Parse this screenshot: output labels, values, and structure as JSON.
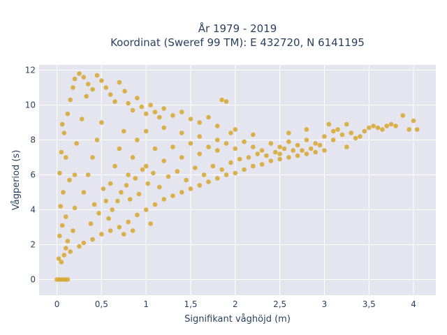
{
  "chart_data": {
    "type": "scatter",
    "title": "År 1979 - 2019",
    "subtitle": "Koordinat (Sweref 99 TM): E 432720, N 6141195",
    "xlabel": "Signifikant våghöjd (m)",
    "ylabel": "Vågperiod (s)",
    "xlim": [
      -0.2,
      4.25
    ],
    "ylim": [
      -0.9,
      12.3
    ],
    "x_ticks": [
      0,
      0.5,
      1,
      1.5,
      2,
      2.5,
      3,
      3.5,
      4
    ],
    "x_tick_labels": [
      "0",
      "0,5",
      "1",
      "1,5",
      "2",
      "2,5",
      "3",
      "3,5",
      "4"
    ],
    "y_ticks": [
      0,
      2,
      4,
      6,
      8,
      10,
      12
    ],
    "y_tick_labels": [
      "0",
      "2",
      "4",
      "6",
      "8",
      "10",
      "12"
    ],
    "grid": true,
    "marker_color": "#d4a11e",
    "plot_background": "#e5e5ef",
    "points": [
      [
        0.0,
        0.0
      ],
      [
        0.03,
        0.0
      ],
      [
        0.06,
        0.0
      ],
      [
        0.09,
        0.0
      ],
      [
        0.12,
        0.0
      ],
      [
        0.02,
        1.2
      ],
      [
        0.05,
        1.0
      ],
      [
        0.08,
        1.4
      ],
      [
        0.1,
        1.8
      ],
      [
        0.03,
        2.5
      ],
      [
        0.06,
        3.1
      ],
      [
        0.04,
        4.2
      ],
      [
        0.07,
        5.0
      ],
      [
        0.03,
        6.1
      ],
      [
        0.05,
        7.3
      ],
      [
        0.08,
        8.4
      ],
      [
        0.06,
        8.9
      ],
      [
        0.1,
        3.6
      ],
      [
        0.12,
        2.2
      ],
      [
        0.15,
        1.6
      ],
      [
        0.18,
        2.8
      ],
      [
        0.2,
        4.1
      ],
      [
        0.14,
        5.7
      ],
      [
        0.1,
        7.0
      ],
      [
        0.12,
        9.5
      ],
      [
        0.15,
        10.3
      ],
      [
        0.18,
        11.0
      ],
      [
        0.2,
        11.5
      ],
      [
        0.25,
        11.8
      ],
      [
        0.3,
        11.6
      ],
      [
        0.35,
        11.2
      ],
      [
        0.4,
        10.9
      ],
      [
        0.45,
        11.7
      ],
      [
        0.5,
        11.4
      ],
      [
        0.55,
        11.0
      ],
      [
        0.6,
        10.6
      ],
      [
        0.65,
        10.2
      ],
      [
        0.7,
        11.3
      ],
      [
        0.76,
        10.8
      ],
      [
        0.8,
        10.1
      ],
      [
        0.85,
        9.7
      ],
      [
        0.9,
        10.4
      ],
      [
        0.95,
        9.9
      ],
      [
        1.0,
        9.5
      ],
      [
        1.05,
        10.0
      ],
      [
        1.1,
        9.6
      ],
      [
        1.15,
        9.3
      ],
      [
        1.2,
        9.8
      ],
      [
        1.3,
        9.4
      ],
      [
        1.4,
        9.6
      ],
      [
        1.5,
        9.2
      ],
      [
        1.6,
        9.0
      ],
      [
        1.7,
        9.3
      ],
      [
        1.8,
        8.8
      ],
      [
        1.85,
        10.3
      ],
      [
        1.9,
        10.2
      ],
      [
        2.0,
        8.6
      ],
      [
        1.95,
        8.4
      ],
      [
        0.25,
        1.9
      ],
      [
        0.3,
        2.1
      ],
      [
        0.4,
        2.3
      ],
      [
        0.5,
        2.6
      ],
      [
        0.6,
        2.8
      ],
      [
        0.7,
        3.0
      ],
      [
        0.8,
        3.3
      ],
      [
        0.9,
        3.7
      ],
      [
        1.0,
        4.0
      ],
      [
        1.1,
        4.3
      ],
      [
        1.2,
        4.6
      ],
      [
        1.3,
        4.8
      ],
      [
        1.4,
        5.0
      ],
      [
        1.5,
        5.2
      ],
      [
        1.6,
        5.4
      ],
      [
        1.7,
        5.6
      ],
      [
        1.8,
        5.8
      ],
      [
        1.9,
        6.0
      ],
      [
        2.0,
        6.1
      ],
      [
        2.1,
        6.3
      ],
      [
        2.2,
        6.5
      ],
      [
        2.3,
        6.6
      ],
      [
        2.4,
        6.8
      ],
      [
        2.5,
        6.9
      ],
      [
        2.6,
        7.0
      ],
      [
        2.7,
        7.1
      ],
      [
        2.8,
        7.2
      ],
      [
        2.9,
        7.3
      ],
      [
        3.0,
        7.4
      ],
      [
        0.3,
        5.0
      ],
      [
        0.35,
        6.0
      ],
      [
        0.4,
        7.0
      ],
      [
        0.45,
        8.0
      ],
      [
        0.5,
        9.0
      ],
      [
        0.55,
        4.5
      ],
      [
        0.6,
        5.5
      ],
      [
        0.65,
        6.5
      ],
      [
        0.7,
        7.5
      ],
      [
        0.75,
        8.5
      ],
      [
        0.8,
        6.0
      ],
      [
        0.85,
        7.0
      ],
      [
        0.9,
        8.0
      ],
      [
        1.0,
        6.5
      ],
      [
        1.1,
        7.5
      ],
      [
        1.2,
        6.8
      ],
      [
        1.3,
        7.6
      ],
      [
        1.4,
        7.0
      ],
      [
        1.5,
        7.8
      ],
      [
        1.6,
        7.2
      ],
      [
        1.7,
        7.6
      ],
      [
        1.8,
        7.4
      ],
      [
        1.9,
        7.8
      ],
      [
        2.0,
        7.5
      ],
      [
        2.1,
        7.9
      ],
      [
        2.2,
        7.6
      ],
      [
        2.3,
        7.4
      ],
      [
        2.4,
        7.8
      ],
      [
        2.5,
        7.6
      ],
      [
        2.6,
        7.9
      ],
      [
        2.7,
        7.7
      ],
      [
        2.8,
        8.0
      ],
      [
        2.9,
        7.8
      ],
      [
        3.0,
        8.2
      ],
      [
        3.05,
        8.9
      ],
      [
        3.1,
        8.0
      ],
      [
        3.15,
        8.6
      ],
      [
        3.2,
        8.3
      ],
      [
        3.25,
        7.6
      ],
      [
        3.3,
        8.4
      ],
      [
        3.35,
        8.1
      ],
      [
        3.4,
        8.2
      ],
      [
        3.45,
        8.5
      ],
      [
        3.5,
        8.7
      ],
      [
        3.55,
        8.8
      ],
      [
        3.6,
        8.7
      ],
      [
        3.65,
        8.6
      ],
      [
        3.7,
        8.8
      ],
      [
        3.75,
        8.9
      ],
      [
        3.8,
        8.8
      ],
      [
        3.88,
        9.4
      ],
      [
        4.0,
        9.1
      ],
      [
        4.04,
        8.6
      ],
      [
        3.95,
        8.6
      ],
      [
        1.0,
        8.5
      ],
      [
        1.2,
        8.7
      ],
      [
        1.4,
        8.4
      ],
      [
        1.6,
        8.2
      ],
      [
        1.8,
        8.0
      ],
      [
        2.2,
        8.3
      ],
      [
        2.6,
        8.4
      ],
      [
        2.8,
        8.6
      ],
      [
        3.1,
        8.5
      ],
      [
        3.25,
        8.9
      ],
      [
        2.5,
        7.2
      ],
      [
        2.75,
        7.4
      ],
      [
        0.2,
        6.0
      ],
      [
        0.22,
        7.8
      ],
      [
        0.28,
        9.2
      ],
      [
        0.33,
        10.5
      ],
      [
        0.38,
        3.2
      ],
      [
        0.42,
        4.3
      ],
      [
        0.47,
        3.8
      ],
      [
        0.52,
        5.2
      ],
      [
        0.58,
        3.5
      ],
      [
        0.62,
        4.0
      ],
      [
        0.68,
        4.5
      ],
      [
        0.72,
        5.0
      ],
      [
        0.78,
        5.4
      ],
      [
        0.82,
        4.6
      ],
      [
        0.88,
        5.8
      ],
      [
        0.92,
        4.9
      ],
      [
        0.96,
        6.3
      ],
      [
        1.02,
        5.5
      ],
      [
        1.08,
        6.1
      ],
      [
        1.15,
        5.3
      ],
      [
        1.25,
        5.9
      ],
      [
        1.35,
        6.2
      ],
      [
        1.45,
        5.7
      ],
      [
        1.55,
        6.4
      ],
      [
        1.65,
        6.0
      ],
      [
        1.75,
        6.5
      ],
      [
        1.85,
        6.3
      ],
      [
        1.95,
        6.7
      ],
      [
        2.05,
        6.9
      ],
      [
        2.15,
        7.0
      ],
      [
        2.25,
        7.2
      ],
      [
        2.35,
        7.1
      ],
      [
        2.45,
        7.3
      ],
      [
        2.55,
        7.5
      ],
      [
        2.65,
        7.4
      ],
      [
        2.85,
        7.5
      ],
      [
        2.95,
        7.7
      ],
      [
        0.75,
        2.6
      ],
      [
        0.85,
        2.8
      ],
      [
        1.05,
        3.2
      ]
    ]
  }
}
